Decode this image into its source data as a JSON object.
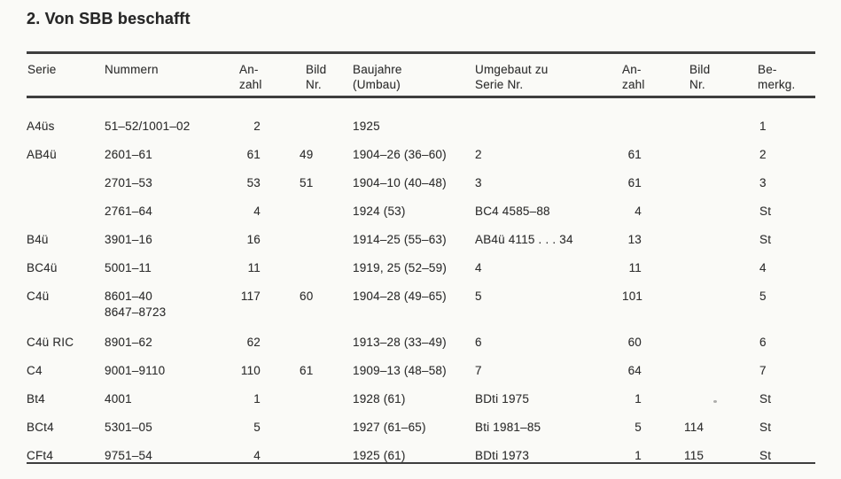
{
  "page": {
    "title": "2. Von SBB beschafft"
  },
  "colors": {
    "paper": "#fafaf7",
    "ink": "#2f2f2f",
    "rule": "#3e3e3e"
  },
  "table": {
    "headers": [
      [
        "Serie"
      ],
      [
        "Nummern"
      ],
      [
        "An-",
        "zahl"
      ],
      [
        "Bild",
        "Nr."
      ],
      [
        "Baujahre",
        "(Umbau)"
      ],
      [
        "Umgebaut zu",
        "Serie Nr."
      ],
      [
        "An-",
        "zahl"
      ],
      [
        "Bild",
        "Nr."
      ],
      [
        "Be-",
        "merkg."
      ]
    ],
    "rows": [
      {
        "cells": [
          "A4üs",
          "51–52/1001–02",
          "2",
          "",
          "1925",
          "",
          "",
          "",
          "1"
        ]
      },
      {
        "cells": [
          "AB4ü",
          "2601–61",
          "61",
          "49",
          "1904–26 (36–60)",
          "2",
          "61",
          "",
          "2"
        ]
      },
      {
        "cells": [
          "",
          "2701–53",
          "53",
          "51",
          "1904–10 (40–48)",
          "3",
          "61",
          "",
          "3"
        ]
      },
      {
        "cells": [
          "",
          "2761–64",
          "4",
          "",
          "1924 (53)",
          "BC4 4585–88",
          "4",
          "",
          "St"
        ]
      },
      {
        "cells": [
          "B4ü",
          "3901–16",
          "16",
          "",
          "1914–25 (55–63)",
          "AB4ü 4115 . . . 34",
          "13",
          "",
          "St"
        ]
      },
      {
        "cells": [
          "BC4ü",
          "5001–11",
          "11",
          "",
          "1919, 25 (52–59)",
          "4",
          "11",
          "",
          "4"
        ]
      },
      {
        "cells": [
          "C4ü",
          [
            "8601–40",
            "8647–8723"
          ],
          "117",
          "60",
          "1904–28 (49–65)",
          "5",
          "101",
          "",
          "5"
        ],
        "tall": true
      },
      {
        "cells": [
          "C4ü RIC",
          "8901–62",
          "62",
          "",
          "1913–28 (33–49)",
          "6",
          "60",
          "",
          "6"
        ]
      },
      {
        "cells": [
          "C4",
          "9001–9110",
          "110",
          "61",
          "1909–13 (48–58)",
          "7",
          "64",
          "",
          "7"
        ]
      },
      {
        "cells": [
          "Bt4",
          "4001",
          "1",
          "",
          "1928 (61)",
          "BDti 1975",
          "1",
          "",
          "St"
        ]
      },
      {
        "cells": [
          "BCt4",
          "5301–05",
          "5",
          "",
          "1927 (61–65)",
          "Bti 1981–85",
          "5",
          "114",
          "St"
        ]
      },
      {
        "cells": [
          "CFt4",
          "9751–54",
          "4",
          "",
          "1925 (61)",
          "BDti 1973",
          "1",
          "115",
          "St"
        ],
        "last": true
      }
    ],
    "column_keys": [
      "serie",
      "nummern",
      "anzahl",
      "bild-nr",
      "baujahre",
      "umgebaut-zu",
      "anzahl-2",
      "bild-nr-2",
      "bemerkg"
    ]
  }
}
